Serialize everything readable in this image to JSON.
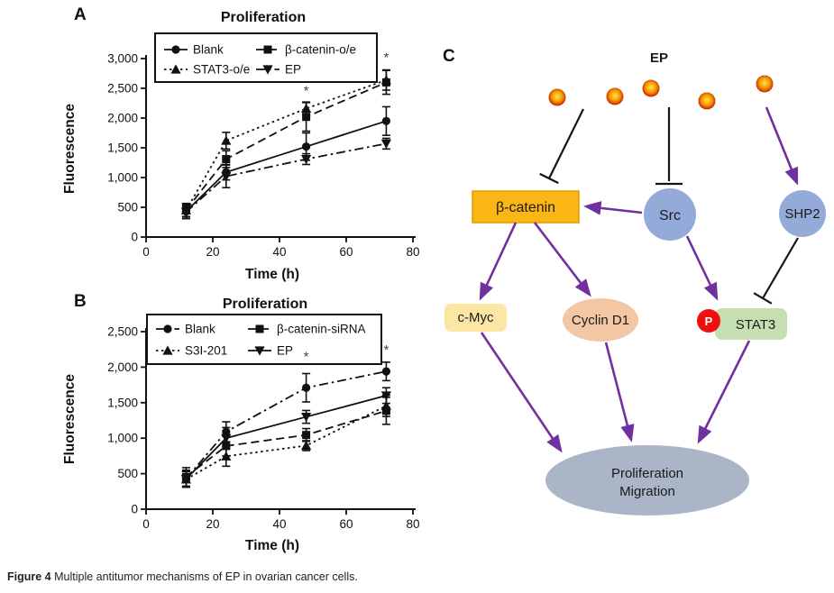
{
  "figure": {
    "panel_a_label": "A",
    "panel_b_label": "B",
    "panel_c_label": "C",
    "caption_bold": "Figure 4",
    "caption_rest": " Multiple antitumor mechanisms of EP in ovarian cancer cells."
  },
  "chart_data": [
    {
      "id": "A",
      "type": "line",
      "title": "Proliferation",
      "xlabel": "Time (h)",
      "ylabel": "Fluorescence",
      "x": [
        12,
        24,
        48,
        72
      ],
      "xlim": [
        0,
        80
      ],
      "xticks": [
        0,
        20,
        40,
        60,
        80
      ],
      "xtick_labels": [
        "0",
        "20",
        "40",
        "60",
        "80"
      ],
      "ylim": [
        0,
        3000
      ],
      "yticks": [
        0,
        500,
        1000,
        1500,
        2000,
        2500,
        3000
      ],
      "ytick_labels": [
        "0",
        "500",
        "1,000",
        "1,500",
        "2,000",
        "2,500",
        "3,000"
      ],
      "grid": false,
      "legend_position": "top-inside-box",
      "series": [
        {
          "name": "Blank",
          "marker": "circle",
          "line": "solid",
          "values": [
            430,
            1090,
            1520,
            1950
          ],
          "errors": [
            120,
            130,
            230,
            240
          ]
        },
        {
          "name": "β-catenin-o/e",
          "marker": "square",
          "line": "dashed",
          "values": [
            455,
            1310,
            2020,
            2600
          ],
          "errors": [
            110,
            140,
            240,
            200
          ]
        },
        {
          "name": "STAT3-o/e",
          "marker": "triangle-up",
          "line": "dotted",
          "values": [
            450,
            1620,
            2160,
            2640
          ],
          "errors": [
            110,
            140,
            110,
            170
          ]
        },
        {
          "name": "EP",
          "marker": "triangle-down",
          "line": "dashdot",
          "values": [
            420,
            1020,
            1310,
            1570
          ],
          "errors": [
            110,
            190,
            90,
            90
          ]
        }
      ],
      "annotations": [
        {
          "x": 48,
          "y": 2390,
          "text": "*"
        },
        {
          "x": 72,
          "y": 2950,
          "text": "*"
        }
      ]
    },
    {
      "id": "B",
      "type": "line",
      "title": "Proliferation",
      "xlabel": "Time (h)",
      "ylabel": "Fluorescence",
      "x": [
        12,
        24,
        48,
        72
      ],
      "xlim": [
        0,
        80
      ],
      "xticks": [
        0,
        20,
        40,
        60,
        80
      ],
      "xtick_labels": [
        "0",
        "20",
        "40",
        "60",
        "80"
      ],
      "ylim": [
        0,
        2500
      ],
      "yticks": [
        0,
        500,
        1000,
        1500,
        2000,
        2500
      ],
      "ytick_labels": [
        "0",
        "500",
        "1,000",
        "1,500",
        "2,000",
        "2,500"
      ],
      "grid": false,
      "legend_position": "top-inside-box",
      "series": [
        {
          "name": "Blank",
          "marker": "circle",
          "line": "dashdot",
          "values": [
            430,
            1090,
            1710,
            1940
          ],
          "errors": [
            120,
            140,
            200,
            130
          ]
        },
        {
          "name": "β-catenin-siRNA",
          "marker": "square",
          "line": "dashed",
          "values": [
            455,
            890,
            1045,
            1385
          ],
          "errors": [
            130,
            140,
            90,
            190
          ]
        },
        {
          "name": "S3I-201",
          "marker": "triangle-up",
          "line": "dotted",
          "values": [
            420,
            745,
            895,
            1455
          ],
          "errors": [
            110,
            140,
            70,
            150
          ]
        },
        {
          "name": "EP",
          "marker": "triangle-down",
          "line": "solid",
          "values": [
            425,
            1000,
            1300,
            1600
          ],
          "errors": [
            110,
            150,
            90,
            110
          ]
        }
      ],
      "annotations": [
        {
          "x": 48,
          "y": 2090,
          "text": "*"
        },
        {
          "x": 72,
          "y": 2180,
          "text": "*"
        }
      ]
    }
  ],
  "diagram": {
    "ep_label": "EP",
    "nodes": {
      "beta_catenin": "β-catenin",
      "src": "Src",
      "shp2": "SHP2",
      "c_myc": "c-Myc",
      "cyclin_d1": "Cyclin D1",
      "p_badge": "P",
      "stat3": "STAT3",
      "outcome_line1": "Proliferation",
      "outcome_line2": "Migration"
    },
    "colors": {
      "arrow_purple": "#7030A0",
      "inhibit_black": "#151515",
      "beta_catenin_fill": "#FBB515",
      "beta_catenin_stroke": "#E09C00",
      "c_myc_fill": "#FBE6A3",
      "cyclin_d1_fill": "#F4C7A4",
      "stat3_fill": "#C5DFB2",
      "p_fill": "#EE1010",
      "node_blue": "#94ABD9",
      "outcome_fill": "#AAB5C8",
      "dot_center": "#FFE34D",
      "dot_mid": "#F59B00",
      "dot_edge": "#C81A00"
    }
  }
}
